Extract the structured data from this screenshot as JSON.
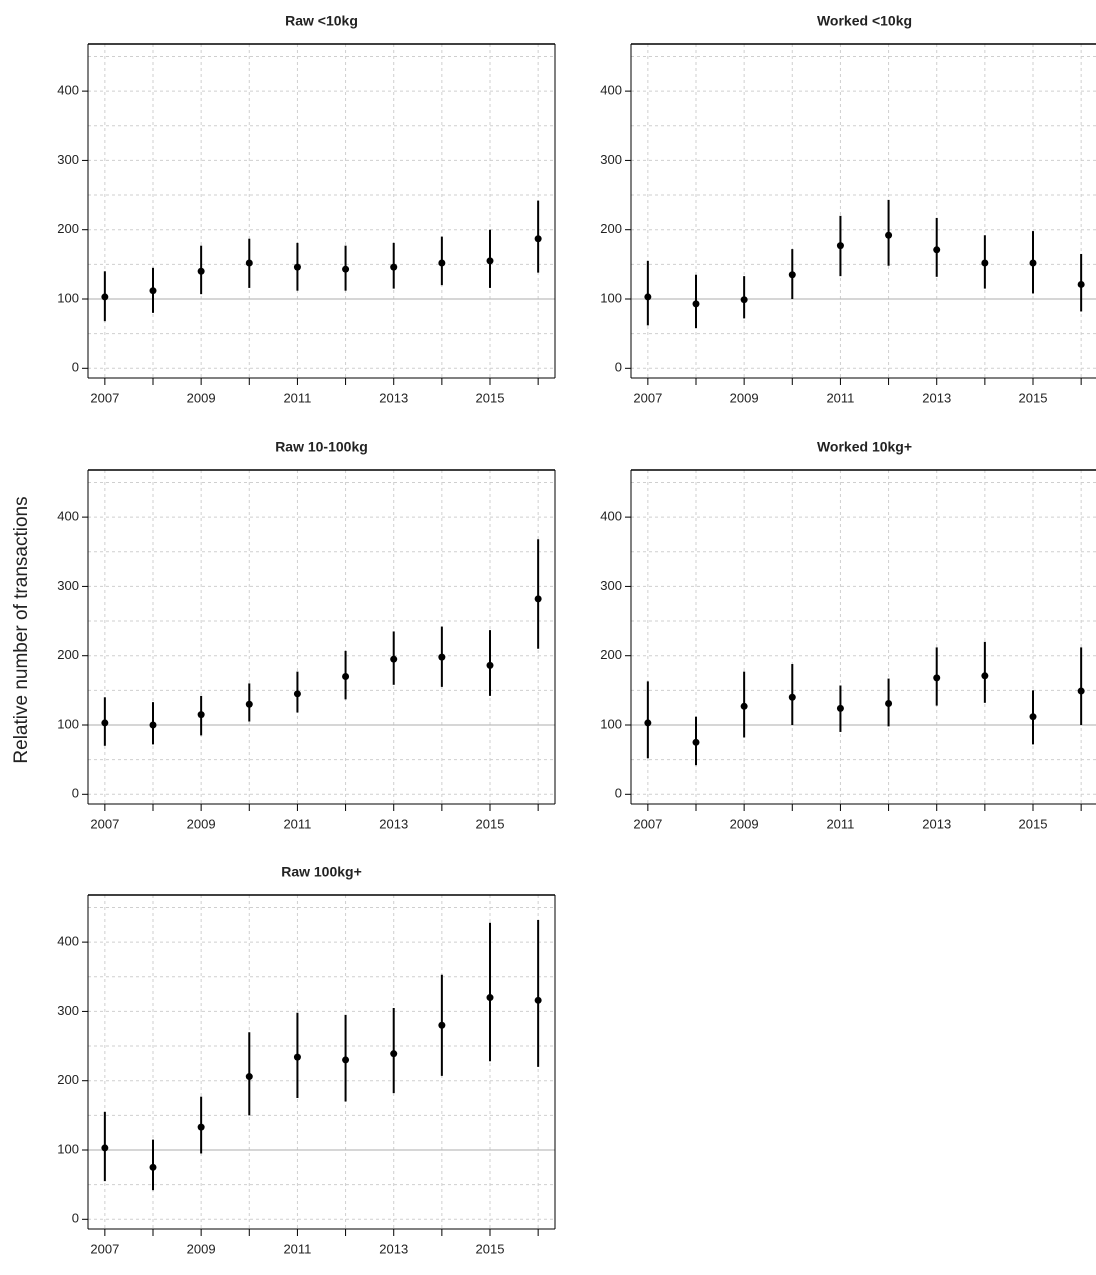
{
  "ylabel": "Relative number of transactions",
  "chart_data": [
    {
      "type": "pointrange",
      "title": "Raw <10kg",
      "color": "#000000",
      "x": [
        2007,
        2008,
        2009,
        2010,
        2011,
        2012,
        2013,
        2014,
        2015,
        2016
      ],
      "values": [
        103,
        112,
        140,
        152,
        146,
        143,
        146,
        152,
        155,
        187
      ],
      "lower": [
        68,
        80,
        107,
        116,
        112,
        112,
        115,
        120,
        116,
        138
      ],
      "upper": [
        140,
        145,
        177,
        187,
        181,
        177,
        181,
        190,
        200,
        242
      ],
      "xlim": [
        2006.65,
        2016.35
      ],
      "ylim": [
        -14,
        468
      ],
      "xticks": [
        2007,
        2009,
        2011,
        2013,
        2015
      ],
      "xminor_ticks": [
        2008,
        2010,
        2012,
        2014,
        2016
      ],
      "yticks": [
        0,
        100,
        200,
        300,
        400
      ],
      "ygrid": [
        0,
        50,
        100,
        150,
        200,
        250,
        300,
        350,
        400,
        450
      ],
      "reference_line": 100
    },
    {
      "type": "pointrange",
      "title": "Worked <10kg",
      "color": "#000000",
      "x": [
        2007,
        2008,
        2009,
        2010,
        2011,
        2012,
        2013,
        2014,
        2015,
        2016
      ],
      "values": [
        103,
        93,
        99,
        135,
        177,
        192,
        171,
        152,
        152,
        121
      ],
      "lower": [
        62,
        58,
        72,
        100,
        133,
        148,
        132,
        115,
        108,
        82
      ],
      "upper": [
        155,
        135,
        133,
        172,
        220,
        243,
        217,
        192,
        198,
        165
      ],
      "xlim": [
        2006.65,
        2016.35
      ],
      "ylim": [
        -14,
        468
      ],
      "xticks": [
        2007,
        2009,
        2011,
        2013,
        2015
      ],
      "xminor_ticks": [
        2008,
        2010,
        2012,
        2014,
        2016
      ],
      "yticks": [
        0,
        100,
        200,
        300,
        400
      ],
      "ygrid": [
        0,
        50,
        100,
        150,
        200,
        250,
        300,
        350,
        400,
        450
      ],
      "reference_line": 100
    },
    {
      "type": "pointrange",
      "title": "Raw 10-100kg",
      "color": "#000000",
      "x": [
        2007,
        2008,
        2009,
        2010,
        2011,
        2012,
        2013,
        2014,
        2015,
        2016
      ],
      "values": [
        103,
        100,
        115,
        130,
        145,
        170,
        195,
        198,
        186,
        282
      ],
      "lower": [
        70,
        72,
        85,
        105,
        118,
        137,
        158,
        155,
        142,
        210
      ],
      "upper": [
        140,
        133,
        142,
        160,
        177,
        207,
        235,
        242,
        237,
        368
      ],
      "xlim": [
        2006.65,
        2016.35
      ],
      "ylim": [
        -14,
        468
      ],
      "xticks": [
        2007,
        2009,
        2011,
        2013,
        2015
      ],
      "xminor_ticks": [
        2008,
        2010,
        2012,
        2014,
        2016
      ],
      "yticks": [
        0,
        100,
        200,
        300,
        400
      ],
      "ygrid": [
        0,
        50,
        100,
        150,
        200,
        250,
        300,
        350,
        400,
        450
      ],
      "reference_line": 100
    },
    {
      "type": "pointrange",
      "title": "Worked 10kg+",
      "color": "#000000",
      "x": [
        2007,
        2008,
        2009,
        2010,
        2011,
        2012,
        2013,
        2014,
        2015,
        2016
      ],
      "values": [
        103,
        75,
        127,
        140,
        124,
        131,
        168,
        171,
        112,
        149
      ],
      "lower": [
        52,
        42,
        82,
        100,
        90,
        98,
        128,
        132,
        72,
        100
      ],
      "upper": [
        163,
        112,
        177,
        188,
        157,
        167,
        212,
        220,
        150,
        212
      ],
      "xlim": [
        2006.65,
        2016.35
      ],
      "ylim": [
        -14,
        468
      ],
      "xticks": [
        2007,
        2009,
        2011,
        2013,
        2015
      ],
      "xminor_ticks": [
        2008,
        2010,
        2012,
        2014,
        2016
      ],
      "yticks": [
        0,
        100,
        200,
        300,
        400
      ],
      "ygrid": [
        0,
        50,
        100,
        150,
        200,
        250,
        300,
        350,
        400,
        450
      ],
      "reference_line": 100
    },
    {
      "type": "pointrange",
      "title": "Raw 100kg+",
      "color": "#000000",
      "x": [
        2007,
        2008,
        2009,
        2010,
        2011,
        2012,
        2013,
        2014,
        2015,
        2016
      ],
      "values": [
        103,
        75,
        133,
        206,
        234,
        230,
        239,
        280,
        320,
        316
      ],
      "lower": [
        55,
        42,
        95,
        150,
        175,
        170,
        182,
        207,
        228,
        220
      ],
      "upper": [
        155,
        115,
        177,
        270,
        298,
        295,
        305,
        353,
        428,
        432
      ],
      "xlim": [
        2006.65,
        2016.35
      ],
      "ylim": [
        -14,
        468
      ],
      "xticks": [
        2007,
        2009,
        2011,
        2013,
        2015
      ],
      "xminor_ticks": [
        2008,
        2010,
        2012,
        2014,
        2016
      ],
      "yticks": [
        0,
        100,
        200,
        300,
        400
      ],
      "ygrid": [
        0,
        50,
        100,
        150,
        200,
        250,
        300,
        350,
        400,
        450
      ],
      "reference_line": 100
    }
  ]
}
